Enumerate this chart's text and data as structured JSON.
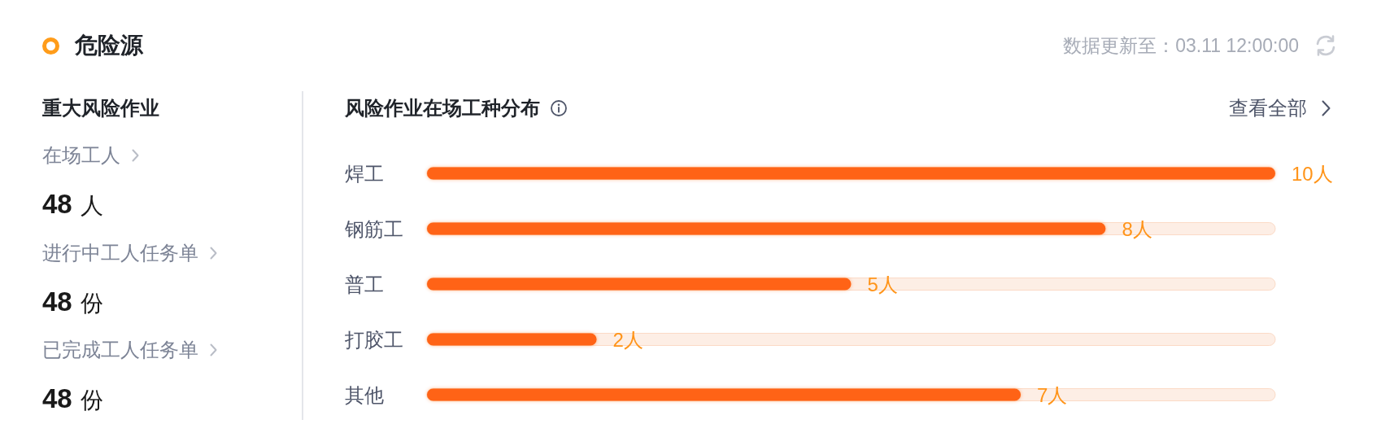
{
  "chart_data": [
    {
      "type": "other",
      "title": "危险源",
      "subtitle": "数据更新至：03.11 12:00:00",
      "annotations": [
        "重大风险作业",
        "在场工人",
        "48 人",
        "进行中工人任务单",
        "48 份",
        "已完成工人任务单",
        "48 份"
      ]
    },
    {
      "type": "bar",
      "orientation": "horizontal",
      "title": "风险作业在场工种分布",
      "categories": [
        "焊工",
        "钢筋工",
        "普工",
        "打胶工",
        "其他"
      ],
      "values": [
        10,
        8,
        5,
        2,
        7
      ],
      "value_labels": [
        "10人",
        "8人",
        "5人",
        "2人",
        "7人"
      ],
      "color": "#ff6414",
      "tick_labels": "y",
      "annotations": [
        "查看全部"
      ]
    }
  ]
}
